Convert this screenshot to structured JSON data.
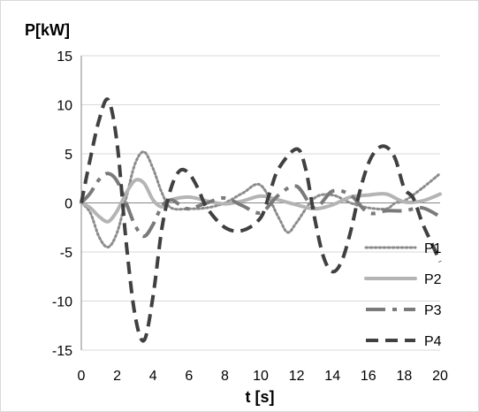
{
  "chart_data": {
    "type": "line",
    "title": "",
    "xlabel": "t [s]",
    "ylabel": "P[kW]",
    "xlim": [
      0,
      20
    ],
    "ylim": [
      -15,
      15
    ],
    "x_ticks": [
      0,
      2,
      4,
      6,
      8,
      10,
      12,
      14,
      16,
      18,
      20
    ],
    "y_ticks": [
      15,
      10,
      5,
      0,
      -5,
      -10,
      -15
    ],
    "grid": "horizontal",
    "legend_position": "right",
    "series": [
      {
        "name": "P1",
        "color": "#8c8c8c",
        "dash": "dotted",
        "x": [
          0,
          0.5,
          1,
          1.5,
          2,
          2.5,
          3,
          3.5,
          4,
          4.5,
          5,
          6,
          7,
          8,
          9,
          10,
          11,
          11.5,
          12,
          13,
          14,
          15,
          16,
          17,
          17.5,
          18,
          19,
          20
        ],
        "values": [
          0,
          -1.0,
          -3.5,
          -4.5,
          -3.0,
          0.5,
          4.0,
          5.2,
          3.5,
          1.0,
          -0.5,
          -0.6,
          -0.5,
          0,
          1.0,
          1.8,
          -1.5,
          -3.0,
          -2.0,
          0.5,
          0.8,
          0,
          -0.5,
          -0.6,
          0,
          0.2,
          1.5,
          3.0
        ]
      },
      {
        "name": "P2",
        "color": "#b4b4b4",
        "dash": "solid",
        "x": [
          0,
          0.5,
          1,
          1.5,
          2,
          2.5,
          3,
          3.5,
          4,
          4.5,
          5,
          6,
          7,
          8,
          9,
          10,
          11,
          12,
          13,
          14,
          15,
          16,
          17,
          18,
          19,
          20
        ],
        "values": [
          0,
          -0.5,
          -1.4,
          -1.9,
          -0.8,
          1.0,
          2.3,
          2.0,
          0.3,
          -0.4,
          0.3,
          0.6,
          0.2,
          -0.1,
          0.2,
          0.7,
          0.3,
          -0.2,
          -0.6,
          -0.2,
          0.6,
          0.8,
          0.9,
          0.1,
          0.2,
          0.9
        ]
      },
      {
        "name": "P3",
        "color": "#7a7a7a",
        "dash": "long",
        "x": [
          0,
          0.5,
          1,
          1.5,
          2,
          2.5,
          3,
          3.5,
          4,
          4.5,
          5,
          5.5,
          6,
          7,
          8,
          9,
          10,
          11,
          12,
          13,
          14,
          15,
          16,
          17,
          18,
          19,
          20
        ],
        "values": [
          0,
          1.0,
          2.4,
          3.0,
          2.2,
          0,
          -2.3,
          -3.4,
          -2.2,
          -0.3,
          0.3,
          -0.2,
          -0.6,
          0,
          0.5,
          -0.3,
          -1.0,
          0.8,
          1.7,
          -0.5,
          1.2,
          0.8,
          -1.0,
          -0.8,
          -0.8,
          -0.5,
          -1.4
        ]
      },
      {
        "name": "P4",
        "color": "#404040",
        "dash": "dashed",
        "x": [
          0,
          0.5,
          1,
          1.5,
          2,
          2.5,
          3,
          3.5,
          4,
          4.5,
          5,
          5.5,
          6,
          6.5,
          7,
          8,
          9,
          10,
          10.5,
          11,
          12,
          12.5,
          13,
          13.5,
          14,
          14.5,
          15,
          15.5,
          16,
          16.5,
          17,
          17.5,
          18,
          18.5,
          19,
          19.5,
          20
        ],
        "values": [
          0,
          4.5,
          8.5,
          10.5,
          6.0,
          -4.0,
          -11.5,
          -14.0,
          -9.5,
          -2.5,
          1.5,
          3.3,
          3.0,
          1.5,
          -0.5,
          -2.5,
          -2.8,
          -1.5,
          1.0,
          3.5,
          5.5,
          3.5,
          -1.5,
          -5.5,
          -7.0,
          -6.0,
          -3.0,
          1.0,
          4.0,
          5.5,
          5.7,
          4.5,
          1.5,
          0.5,
          -2.0,
          -4.0,
          -6.0
        ]
      }
    ]
  }
}
